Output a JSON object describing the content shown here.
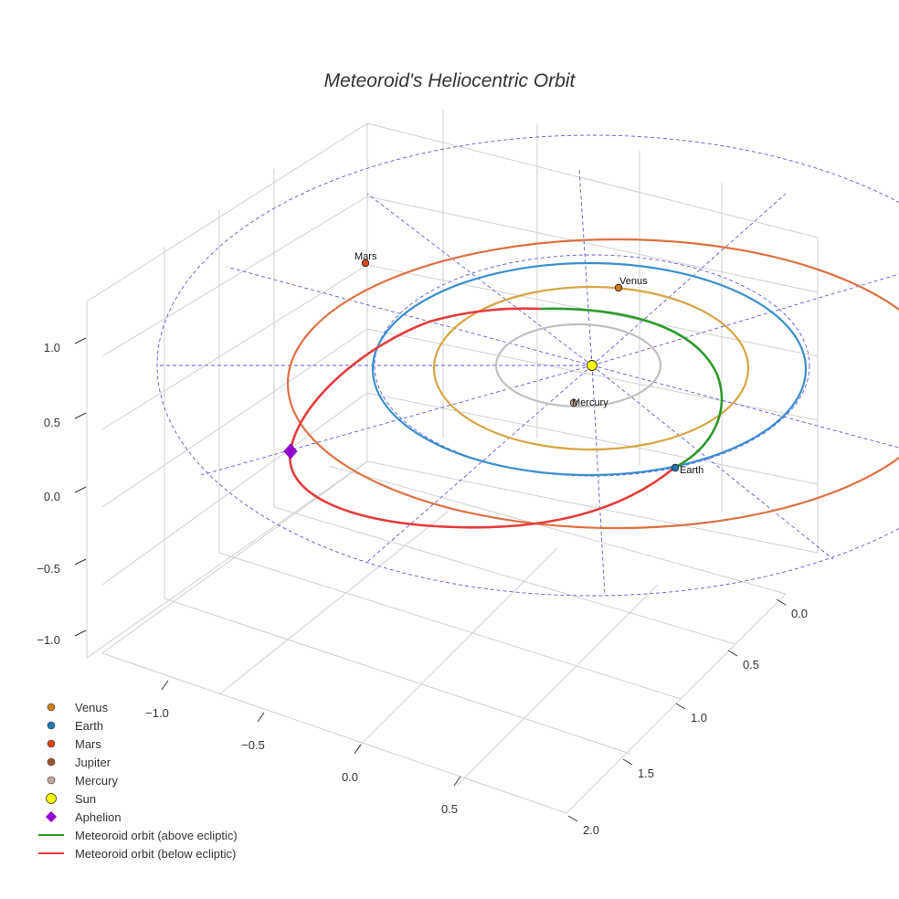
{
  "chart_data": {
    "type": "3d-line",
    "title": "Meteoroid's Heliocentric Orbit",
    "z_ticks": [
      "1.0",
      "0.5",
      "0.0",
      "−0.5",
      "−1.0"
    ],
    "x_ticks": [
      "−1.0",
      "−0.5",
      "0.0",
      "0.5"
    ],
    "y_ticks": [
      "0.0",
      "0.5",
      "1.0",
      "1.5",
      "2.0"
    ],
    "z_range": [
      -1.0,
      1.0
    ],
    "grid": true,
    "planets": [
      {
        "name": "Venus",
        "semi_major_au": 0.72,
        "color": "#cc7a1a",
        "orbit_color": "#d9a441"
      },
      {
        "name": "Earth",
        "semi_major_au": 1.0,
        "color": "#1f77b4",
        "orbit_color": "#3a8fd0"
      },
      {
        "name": "Mars",
        "semi_major_au": 1.52,
        "color": "#d9441a",
        "orbit_color": "#e07040"
      },
      {
        "name": "Jupiter",
        "color": "#a0522d"
      },
      {
        "name": "Mercury",
        "semi_major_au": 0.39,
        "color": "#c8a89a",
        "orbit_color": "#c0c0c0"
      }
    ],
    "sun": {
      "name": "Sun",
      "color": "#ffff00"
    },
    "aphelion": {
      "name": "Aphelion",
      "color": "#9400d3"
    },
    "meteoroid_orbit": {
      "above_label": "Meteoroid orbit (above ecliptic)",
      "below_label": "Meteoroid orbit (below ecliptic)",
      "above_color": "#2a9a2a",
      "below_color": "#e63b3b"
    },
    "reference_grid_color": "#5a5adf",
    "legend": [
      {
        "label": "Venus",
        "marker": "circle",
        "color": "#cc7a1a"
      },
      {
        "label": "Earth",
        "marker": "circle",
        "color": "#1f77b4"
      },
      {
        "label": "Mars",
        "marker": "circle",
        "color": "#d9441a"
      },
      {
        "label": "Jupiter",
        "marker": "circle",
        "color": "#a0522d"
      },
      {
        "label": "Mercury",
        "marker": "circle",
        "color": "#c8a89a"
      },
      {
        "label": "Sun",
        "marker": "circle-large",
        "color": "#ffff00"
      },
      {
        "label": "Aphelion",
        "marker": "diamond",
        "color": "#9400d3"
      },
      {
        "label": "Meteoroid orbit (above ecliptic)",
        "marker": "line",
        "color": "#2a9a2a"
      },
      {
        "label": "Meteoroid orbit (below ecliptic)",
        "marker": "line",
        "color": "#e63b3b"
      }
    ]
  }
}
